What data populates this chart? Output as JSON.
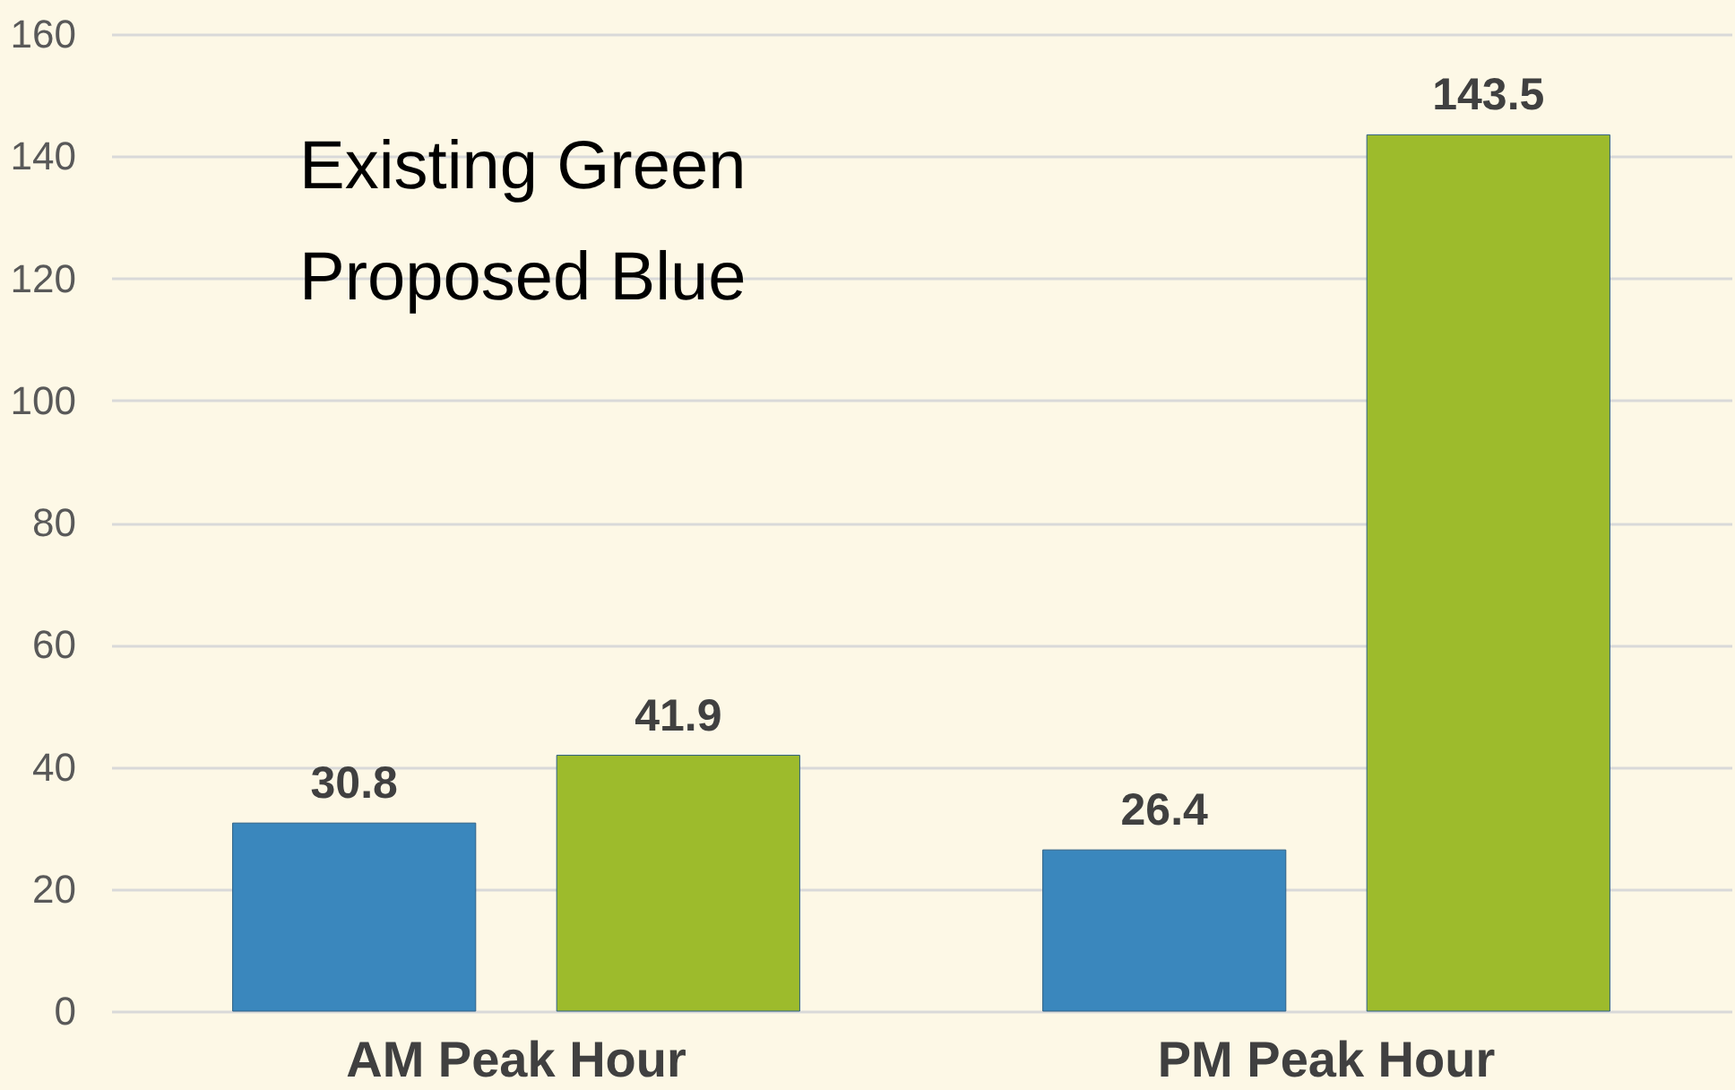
{
  "chart_data": {
    "type": "bar",
    "categories": [
      "AM Peak Hour",
      "PM Peak Hour"
    ],
    "series": [
      {
        "color": "#3a87bd",
        "values": [
          30.8,
          26.4
        ]
      },
      {
        "color": "#9dbb2c",
        "values": [
          41.9,
          143.5
        ]
      }
    ],
    "ylim": [
      0,
      160
    ],
    "yticks": [
      0,
      20,
      40,
      60,
      80,
      100,
      120,
      140,
      160
    ],
    "grid": "y",
    "data_labels": true,
    "annotations": [
      "Existing Green",
      "Proposed Blue"
    ]
  }
}
